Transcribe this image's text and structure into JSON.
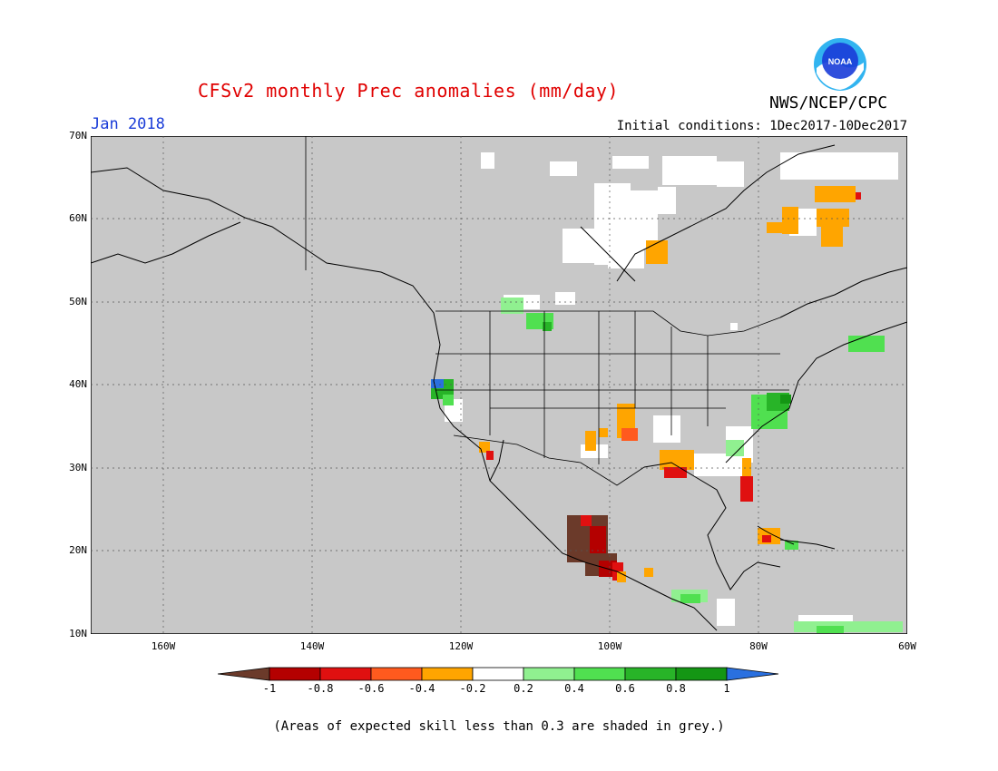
{
  "title": "CFSv2 monthly Prec anomalies (mm/day)",
  "agency": "NWS/NCEP/CPC",
  "logo_text": "NOAA",
  "valid_month": "Jan 2018",
  "initial_conditions": "Initial conditions: 1Dec2017-10Dec2017",
  "lat_labels": [
    "70N",
    "60N",
    "50N",
    "40N",
    "30N",
    "20N",
    "10N"
  ],
  "lon_labels": [
    "160W",
    "140W",
    "120W",
    "100W",
    "80W",
    "60W"
  ],
  "colorbar": {
    "labels": [
      "-1",
      "-0.8",
      "-0.6",
      "-0.4",
      "-0.2",
      "0.2",
      "0.4",
      "0.6",
      "0.8",
      "1"
    ],
    "colors": [
      "#6b3a2a",
      "#b40000",
      "#e01010",
      "#ff5a1e",
      "#ffa500",
      "#ffffff",
      "#90f090",
      "#50e050",
      "#28b428",
      "#149614",
      "#2a70e0"
    ]
  },
  "footnote": "(Areas of expected skill less than 0.3 are shaded in grey.)",
  "colors": {
    "grey": "#c8c8c8",
    "title": "#e00000",
    "valid": "#1a3cd8"
  }
}
